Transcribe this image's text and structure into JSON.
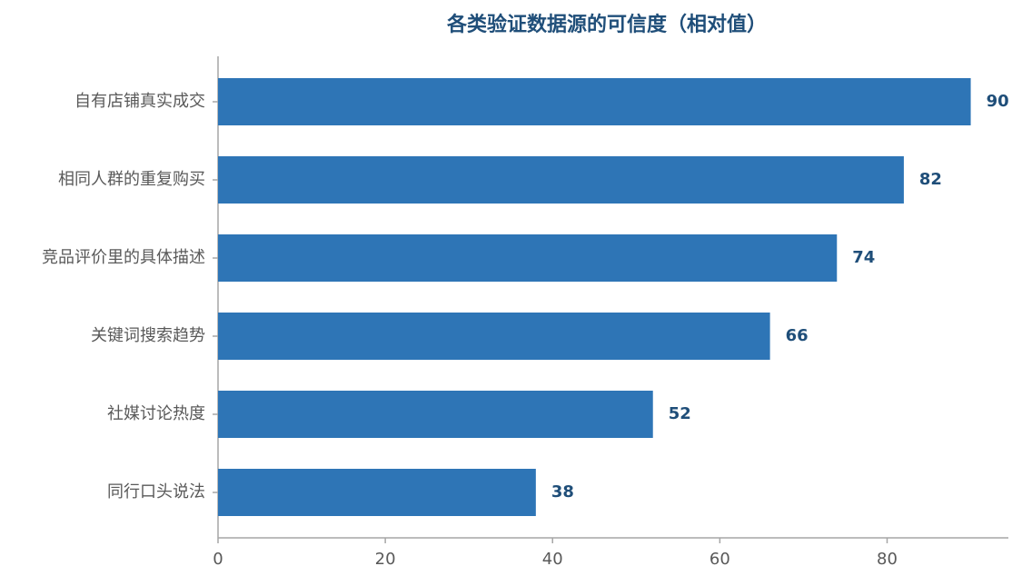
{
  "chart_data": {
    "type": "barh",
    "title": "各类验证数据源的可信度（相对值）",
    "categories": [
      "自有店铺真实成交",
      "相同人群的重复购买",
      "竞品评价里的具体描述",
      "关键词搜索趋势",
      "社媒讨论热度",
      "同行口头说法"
    ],
    "values": [
      90,
      82,
      74,
      66,
      52,
      38
    ],
    "color": "#2e75b6",
    "value_label_color": "#1f4e79",
    "xlim": [
      0,
      94.5
    ],
    "xticks": [
      0,
      20,
      40,
      60,
      80
    ],
    "grid": false
  }
}
